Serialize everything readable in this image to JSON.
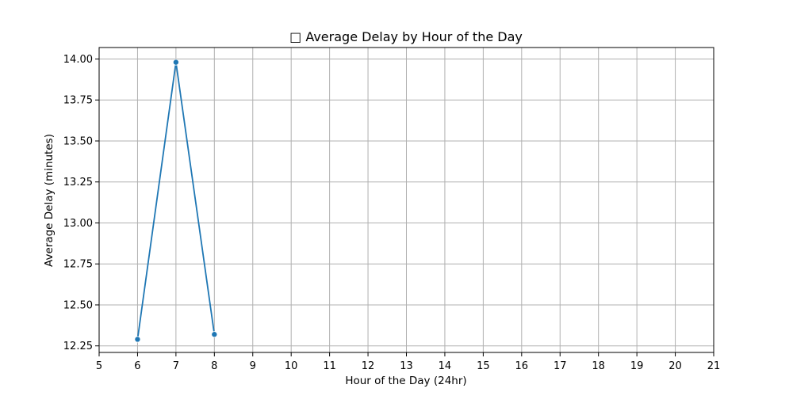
{
  "chart_data": {
    "type": "line",
    "title": "□ Average Delay by Hour of the Day",
    "xlabel": "Hour of the Day (24hr)",
    "ylabel": "Average Delay (minutes)",
    "xlim": [
      5,
      21
    ],
    "ylim": [
      12.21,
      14.07
    ],
    "xticks": [
      5,
      6,
      7,
      8,
      9,
      10,
      11,
      12,
      13,
      14,
      15,
      16,
      17,
      18,
      19,
      20,
      21
    ],
    "yticks": [
      12.25,
      12.5,
      12.75,
      13.0,
      13.25,
      13.5,
      13.75,
      14.0
    ],
    "ytick_labels": [
      "12.25",
      "12.50",
      "12.75",
      "13.00",
      "13.25",
      "13.50",
      "13.75",
      "14.00"
    ],
    "grid": true,
    "series": [
      {
        "x": [
          6,
          7,
          8
        ],
        "values": [
          12.29,
          13.98,
          12.32
        ],
        "color": "#1f77b4",
        "marker": "circle"
      }
    ]
  }
}
